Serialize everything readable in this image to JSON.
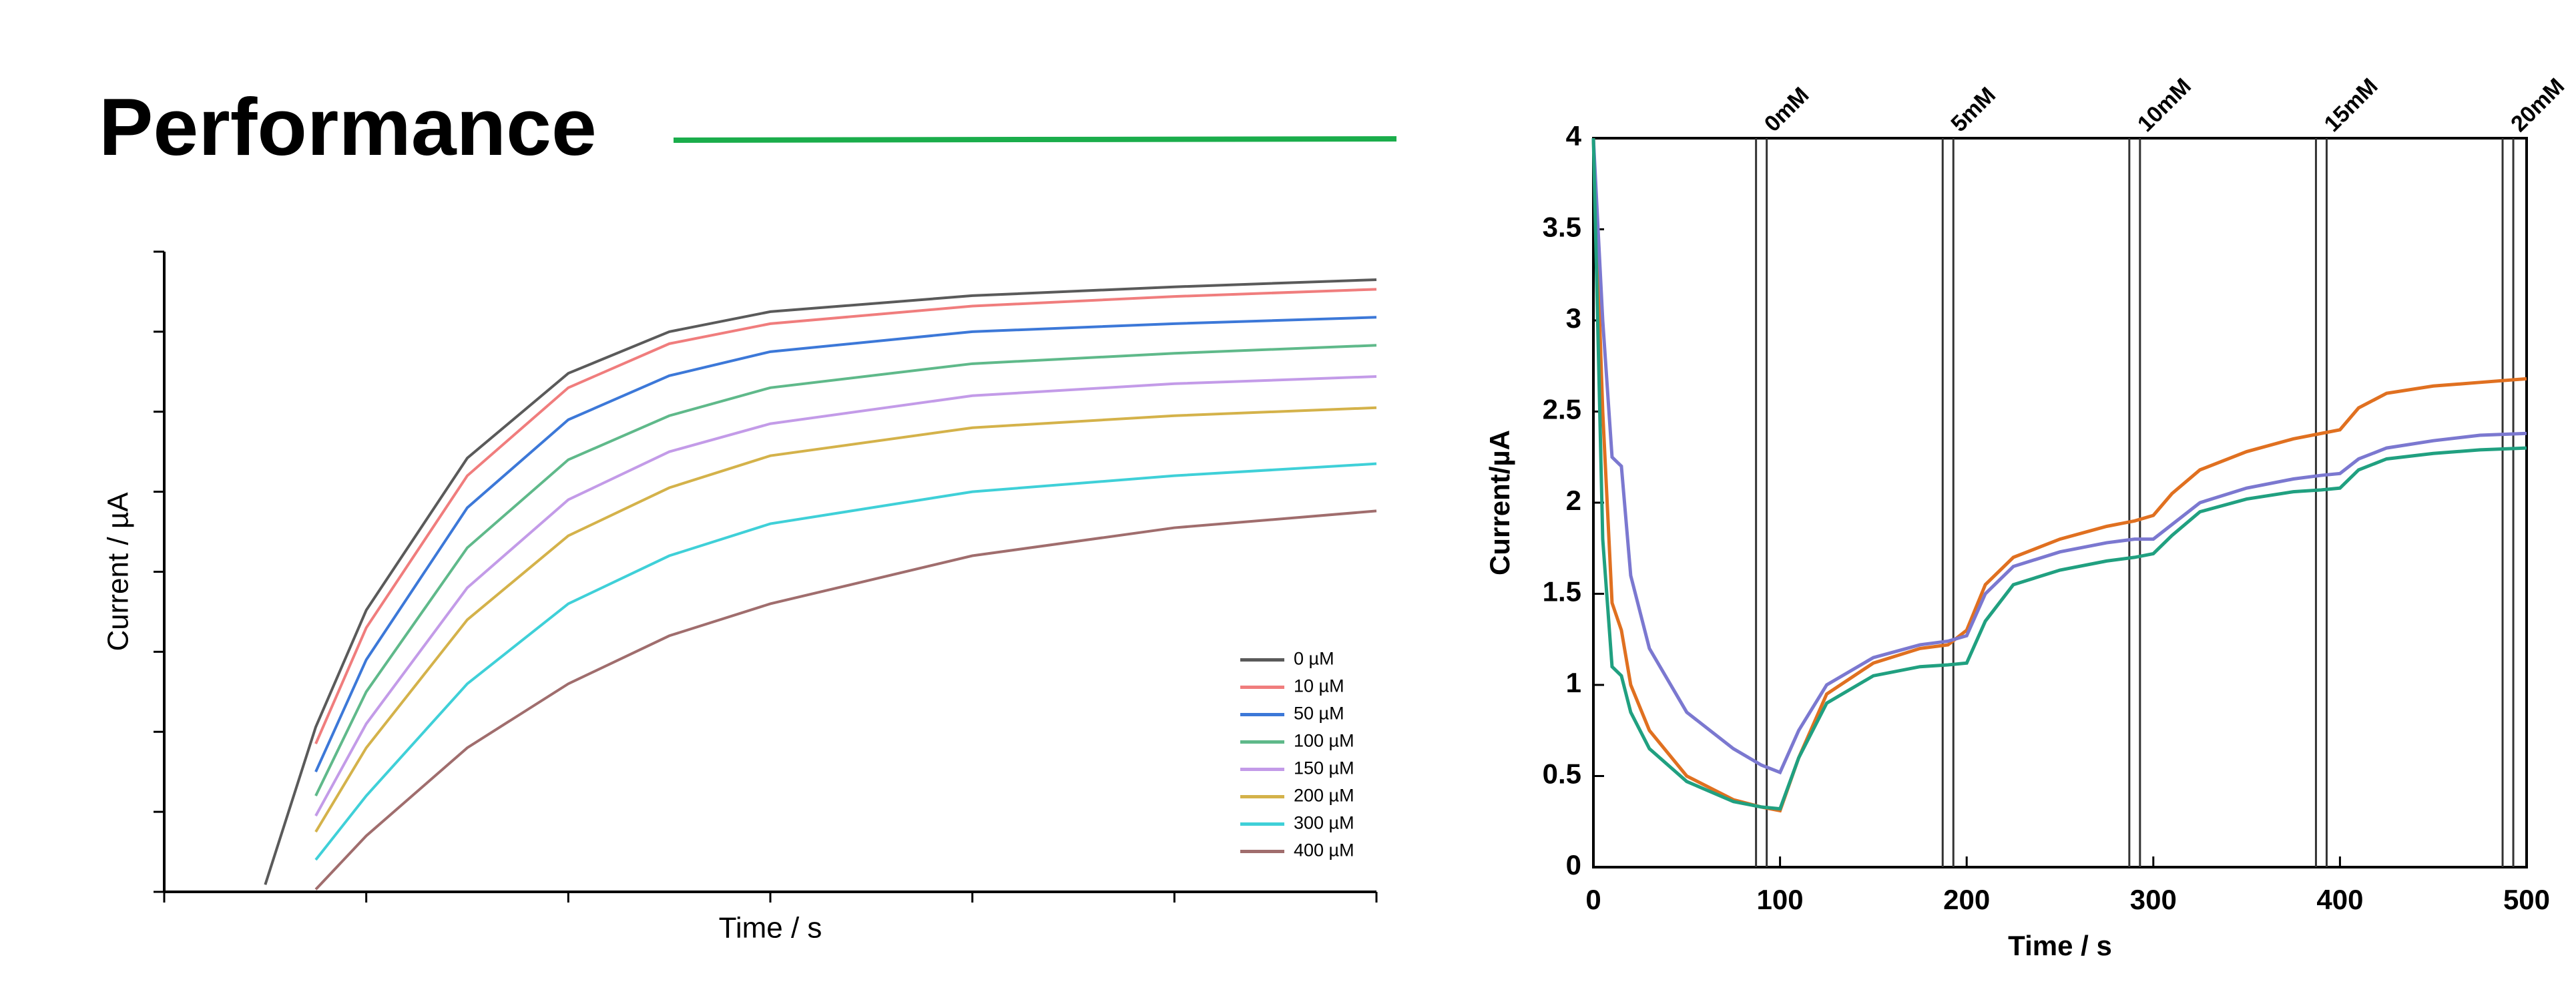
{
  "title": "Performance",
  "chart_data": [
    {
      "type": "line",
      "xlabel": "Time / s",
      "ylabel": "Current / µA",
      "x": [
        0.5,
        0.75,
        1,
        1.5,
        2,
        2.5,
        3,
        4,
        5,
        6
      ],
      "xlim": [
        0,
        6
      ],
      "ylim": [
        0,
        8
      ],
      "xticks": [
        0,
        1,
        2,
        3,
        4,
        5,
        6
      ],
      "yticks": [
        0,
        1,
        2,
        3,
        4,
        5,
        6,
        7,
        8
      ],
      "tick_labels": false,
      "tick_direction": "out",
      "frame": false,
      "legend": "lower right",
      "series": [
        {
          "name": "0 µM",
          "color": "#5a5a5a",
          "values": [
            0.09,
            2.06,
            3.52,
            5.42,
            6.48,
            7.0,
            7.25,
            7.45,
            7.56,
            7.65
          ]
        },
        {
          "name": "10 µM",
          "color": "#f07d7d",
          "values": [
            null,
            1.85,
            3.3,
            5.2,
            6.3,
            6.85,
            7.1,
            7.32,
            7.44,
            7.53
          ]
        },
        {
          "name": "50 µM",
          "color": "#3c78d8",
          "values": [
            null,
            1.5,
            2.9,
            4.8,
            5.9,
            6.45,
            6.75,
            7.0,
            7.1,
            7.18
          ]
        },
        {
          "name": "100 µM",
          "color": "#5fb98a",
          "values": [
            null,
            1.2,
            2.5,
            4.3,
            5.4,
            5.95,
            6.3,
            6.6,
            6.73,
            6.83
          ]
        },
        {
          "name": "150 µM",
          "color": "#c39be8",
          "values": [
            null,
            0.95,
            2.1,
            3.8,
            4.9,
            5.5,
            5.85,
            6.2,
            6.35,
            6.44
          ]
        },
        {
          "name": "200 µM",
          "color": "#d4b24a",
          "values": [
            null,
            0.75,
            1.8,
            3.4,
            4.45,
            5.05,
            5.45,
            5.8,
            5.95,
            6.05
          ]
        },
        {
          "name": "300 µM",
          "color": "#3fd0d8",
          "values": [
            null,
            0.4,
            1.2,
            2.6,
            3.6,
            4.2,
            4.6,
            5.0,
            5.2,
            5.35
          ]
        },
        {
          "name": "400 µM",
          "color": "#a06d6d",
          "values": [
            null,
            0.03,
            0.7,
            1.8,
            2.6,
            3.2,
            3.6,
            4.2,
            4.55,
            4.76
          ]
        }
      ]
    },
    {
      "type": "line",
      "xlabel": "Time / s",
      "ylabel": "Current/µA",
      "x": [
        0,
        5,
        10,
        15,
        20,
        30,
        50,
        75,
        90,
        100,
        110,
        125,
        150,
        175,
        190,
        200,
        210,
        225,
        250,
        275,
        290,
        300,
        310,
        325,
        350,
        375,
        390,
        400,
        410,
        425,
        450,
        475,
        500
      ],
      "xlim": [
        0,
        500
      ],
      "ylim": [
        0,
        4
      ],
      "xticks": [
        0,
        100,
        200,
        300,
        400,
        500
      ],
      "yticks": [
        0,
        0.5,
        1,
        1.5,
        2,
        2.5,
        3,
        3.5,
        4
      ],
      "tick_labels": true,
      "tick_direction": "in",
      "frame": true,
      "annotations": [
        {
          "text": "0mM",
          "x": 90
        },
        {
          "text": "5mM",
          "x": 190
        },
        {
          "text": "10mM",
          "x": 290
        },
        {
          "text": "15mM",
          "x": 390
        },
        {
          "text": "20mM",
          "x": 490
        }
      ],
      "series": [
        {
          "color": "#e07020",
          "values": [
            4,
            2.5,
            1.45,
            1.3,
            1.0,
            0.75,
            0.5,
            0.37,
            0.33,
            0.31,
            0.6,
            0.95,
            1.12,
            1.2,
            1.22,
            1.3,
            1.55,
            1.7,
            1.8,
            1.87,
            1.9,
            1.93,
            2.05,
            2.18,
            2.28,
            2.35,
            2.38,
            2.4,
            2.52,
            2.6,
            2.64,
            2.66,
            2.68
          ]
        },
        {
          "color": "#7b78d0",
          "values": [
            4,
            3.0,
            2.25,
            2.2,
            1.6,
            1.2,
            0.85,
            0.65,
            0.56,
            0.52,
            0.75,
            1.0,
            1.15,
            1.22,
            1.24,
            1.27,
            1.5,
            1.65,
            1.73,
            1.78,
            1.8,
            1.8,
            1.88,
            2.0,
            2.08,
            2.13,
            2.15,
            2.16,
            2.24,
            2.3,
            2.34,
            2.37,
            2.38
          ]
        },
        {
          "color": "#20a080",
          "values": [
            4,
            1.8,
            1.1,
            1.05,
            0.85,
            0.65,
            0.47,
            0.36,
            0.33,
            0.32,
            0.6,
            0.9,
            1.05,
            1.1,
            1.11,
            1.12,
            1.35,
            1.55,
            1.63,
            1.68,
            1.7,
            1.72,
            1.82,
            1.95,
            2.02,
            2.06,
            2.07,
            2.08,
            2.18,
            2.24,
            2.27,
            2.29,
            2.3
          ]
        }
      ]
    }
  ]
}
